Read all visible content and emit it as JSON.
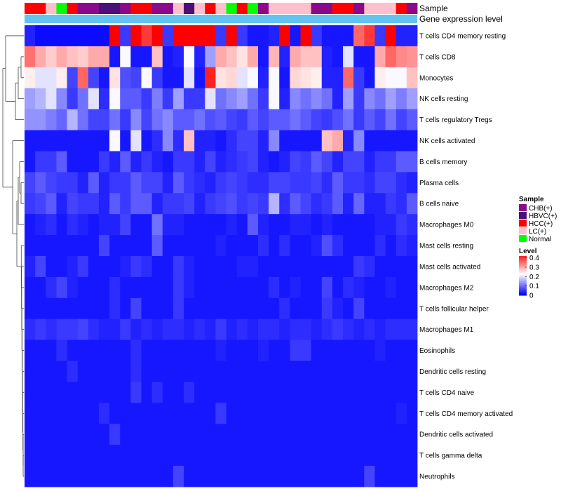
{
  "chart_data": {
    "type": "heatmap",
    "title": "",
    "annotation_tracks": [
      "Sample",
      "Gene expression level"
    ],
    "expression_track_color": "#63c3f0",
    "palette": {
      "low": "#0000ff",
      "mid": "#ffffff",
      "high": "#ff0000"
    },
    "value_range": [
      0,
      0.45
    ],
    "rows": [
      "T cells CD4 memory resting",
      "T cells CD8",
      "Monocytes",
      "NK cells resting",
      "T cells regulatory  Tregs",
      "NK cells activated",
      "B cells memory",
      "Plasma cells",
      "B cells naive",
      "Macrophages M0",
      "Mast cells resting",
      "Mast cells activated",
      "Macrophages M2",
      "T cells follicular helper",
      "Macrophages M1",
      "Eosinophils",
      "Dendritic cells resting",
      "T cells CD4 naive",
      "T cells CD4 memory activated",
      "Dendritic cells activated",
      "T cells gamma delta",
      "Neutrophils"
    ],
    "sample_groups": [
      "HCC(+)",
      "HCC(+)",
      "LC(+)",
      "Normal",
      "HCC(+)",
      "CHB(+)",
      "CHB(+)",
      "HBVC(+)",
      "HBVC(+)",
      "CHB(+)",
      "HCC(+)",
      "HCC(+)",
      "CHB(+)",
      "CHB(+)",
      "LC(+)",
      "HBVC(+)",
      "LC(+)",
      "HCC(+)",
      "LC(+)",
      "Normal",
      "HCC(+)",
      "Normal",
      "CHB(+)",
      "LC(+)",
      "LC(+)",
      "LC(+)",
      "LC(+)",
      "CHB(+)",
      "CHB(+)",
      "HCC(+)",
      "HCC(+)",
      "CHB(+)",
      "LC(+)",
      "LC(+)",
      "LC(+)",
      "HCC(+)",
      "CHB(+)"
    ],
    "group_colors": {
      "CHB(+)": "#8b0a8b",
      "HBVC(+)": "#4b0f7a",
      "HCC(+)": "#ff0000",
      "LC(+)": "#ffc0cb",
      "Normal": "#00ff00"
    },
    "legend": {
      "sample_title": "Sample",
      "sample_entries": [
        "CHB(+)",
        "HBVC(+)",
        "HCC(+)",
        "LC(+)",
        "Normal"
      ],
      "level_title": "Level",
      "level_ticks": [
        0.4,
        0.3,
        0.2,
        0.1,
        0
      ],
      "level_tick_labels": [
        "0.4",
        "0.3",
        "0.2",
        "0.1",
        "0"
      ]
    },
    "values": [
      [
        0.03,
        0.01,
        0.01,
        0.01,
        0.01,
        0.01,
        0.01,
        0.01,
        0.45,
        0.05,
        0.45,
        0.4,
        0.45,
        0.05,
        0.45,
        0.45,
        0.45,
        0.45,
        0.05,
        0.45,
        0.05,
        0.02,
        0.02,
        0.03,
        0.45,
        0.02,
        0.45,
        0.05,
        0.02,
        0.02,
        0.02,
        0.36,
        0.4,
        0.05,
        0.45,
        0.03,
        0.03
      ],
      [
        0.35,
        0.3,
        0.27,
        0.3,
        0.28,
        0.27,
        0.3,
        0.3,
        0.02,
        0.22,
        0.02,
        0.02,
        0.28,
        0.02,
        0.03,
        0.22,
        0.03,
        0.14,
        0.3,
        0.28,
        0.25,
        0.3,
        0.02,
        0.29,
        0.03,
        0.3,
        0.28,
        0.28,
        0.03,
        0.02,
        0.2,
        0.02,
        0.02,
        0.3,
        0.36,
        0.33,
        0.32
      ],
      [
        0.24,
        0.2,
        0.2,
        0.24,
        0.06,
        0.36,
        0.06,
        0.02,
        0.25,
        0.07,
        0.06,
        0.23,
        0.05,
        0.02,
        0.02,
        0.2,
        0.02,
        0.42,
        0.25,
        0.26,
        0.2,
        0.22,
        0.03,
        0.22,
        0.02,
        0.26,
        0.25,
        0.24,
        0.03,
        0.03,
        0.36,
        0.05,
        0.02,
        0.24,
        0.22,
        0.22,
        0.28
      ],
      [
        0.14,
        0.16,
        0.2,
        0.12,
        0.05,
        0.1,
        0.2,
        0.04,
        0.22,
        0.08,
        0.08,
        0.05,
        0.11,
        0.05,
        0.14,
        0.05,
        0.05,
        0.2,
        0.1,
        0.12,
        0.14,
        0.1,
        0.05,
        0.22,
        0.03,
        0.12,
        0.1,
        0.12,
        0.1,
        0.03,
        0.14,
        0.05,
        0.12,
        0.1,
        0.14,
        0.11,
        0.14
      ],
      [
        0.13,
        0.13,
        0.11,
        0.09,
        0.16,
        0.1,
        0.06,
        0.06,
        0.1,
        0.05,
        0.12,
        0.06,
        0.1,
        0.12,
        0.08,
        0.08,
        0.1,
        0.07,
        0.08,
        0.06,
        0.05,
        0.08,
        0.06,
        0.08,
        0.08,
        0.1,
        0.08,
        0.06,
        0.05,
        0.07,
        0.1,
        0.05,
        0.08,
        0.06,
        0.1,
        0.06,
        0.08
      ],
      [
        0.02,
        0.02,
        0.02,
        0.02,
        0.02,
        0.02,
        0.02,
        0.02,
        0.22,
        0.02,
        0.2,
        0.02,
        0.04,
        0.12,
        0.04,
        0.28,
        0.03,
        0.03,
        0.02,
        0.04,
        0.06,
        0.06,
        0.03,
        0.12,
        0.02,
        0.02,
        0.02,
        0.02,
        0.28,
        0.3,
        0.03,
        0.12,
        0.02,
        0.02,
        0.02,
        0.02,
        0.02
      ],
      [
        0.02,
        0.05,
        0.05,
        0.08,
        0.02,
        0.02,
        0.02,
        0.05,
        0.03,
        0.08,
        0.03,
        0.05,
        0.03,
        0.02,
        0.05,
        0.05,
        0.03,
        0.06,
        0.03,
        0.04,
        0.05,
        0.06,
        0.03,
        0.02,
        0.03,
        0.06,
        0.05,
        0.08,
        0.06,
        0.03,
        0.06,
        0.06,
        0.03,
        0.05,
        0.05,
        0.08,
        0.08
      ],
      [
        0.06,
        0.08,
        0.06,
        0.05,
        0.05,
        0.03,
        0.08,
        0.03,
        0.05,
        0.05,
        0.08,
        0.06,
        0.06,
        0.03,
        0.08,
        0.05,
        0.04,
        0.03,
        0.05,
        0.06,
        0.05,
        0.04,
        0.04,
        0.06,
        0.06,
        0.05,
        0.05,
        0.06,
        0.04,
        0.08,
        0.05,
        0.05,
        0.04,
        0.06,
        0.06,
        0.04,
        0.03
      ],
      [
        0.05,
        0.06,
        0.08,
        0.03,
        0.06,
        0.05,
        0.05,
        0.03,
        0.08,
        0.05,
        0.08,
        0.08,
        0.03,
        0.05,
        0.05,
        0.06,
        0.03,
        0.05,
        0.06,
        0.07,
        0.05,
        0.06,
        0.05,
        0.16,
        0.04,
        0.08,
        0.06,
        0.04,
        0.05,
        0.08,
        0.03,
        0.09,
        0.03,
        0.03,
        0.05,
        0.04,
        0.08
      ],
      [
        0.02,
        0.03,
        0.04,
        0.02,
        0.04,
        0.03,
        0.02,
        0.03,
        0.03,
        0.06,
        0.02,
        0.02,
        0.1,
        0.03,
        0.03,
        0.02,
        0.02,
        0.02,
        0.02,
        0.03,
        0.02,
        0.08,
        0.03,
        0.02,
        0.02,
        0.03,
        0.03,
        0.02,
        0.03,
        0.02,
        0.02,
        0.02,
        0.02,
        0.03,
        0.03,
        0.05,
        0.04
      ],
      [
        0.02,
        0.02,
        0.02,
        0.02,
        0.02,
        0.02,
        0.02,
        0.06,
        0.02,
        0.02,
        0.02,
        0.02,
        0.08,
        0.02,
        0.02,
        0.02,
        0.02,
        0.02,
        0.03,
        0.02,
        0.02,
        0.02,
        0.04,
        0.02,
        0.04,
        0.02,
        0.02,
        0.03,
        0.07,
        0.04,
        0.02,
        0.02,
        0.02,
        0.04,
        0.02,
        0.04,
        0.03
      ],
      [
        0.03,
        0.06,
        0.02,
        0.02,
        0.03,
        0.05,
        0.02,
        0.02,
        0.02,
        0.03,
        0.05,
        0.04,
        0.02,
        0.02,
        0.05,
        0.03,
        0.02,
        0.02,
        0.02,
        0.02,
        0.03,
        0.03,
        0.02,
        0.02,
        0.02,
        0.02,
        0.02,
        0.02,
        0.02,
        0.02,
        0.02,
        0.05,
        0.04,
        0.02,
        0.02,
        0.02,
        0.02
      ],
      [
        0.02,
        0.02,
        0.04,
        0.06,
        0.03,
        0.02,
        0.02,
        0.02,
        0.04,
        0.02,
        0.02,
        0.02,
        0.02,
        0.02,
        0.05,
        0.03,
        0.02,
        0.02,
        0.02,
        0.02,
        0.02,
        0.02,
        0.02,
        0.04,
        0.02,
        0.03,
        0.02,
        0.02,
        0.06,
        0.02,
        0.04,
        0.03,
        0.02,
        0.02,
        0.03,
        0.02,
        0.02
      ],
      [
        0.02,
        0.02,
        0.02,
        0.02,
        0.02,
        0.02,
        0.02,
        0.02,
        0.04,
        0.02,
        0.06,
        0.02,
        0.02,
        0.02,
        0.05,
        0.02,
        0.02,
        0.02,
        0.02,
        0.02,
        0.02,
        0.02,
        0.02,
        0.02,
        0.04,
        0.02,
        0.02,
        0.02,
        0.05,
        0.03,
        0.02,
        0.06,
        0.02,
        0.02,
        0.02,
        0.02,
        0.02
      ],
      [
        0.04,
        0.05,
        0.04,
        0.05,
        0.05,
        0.06,
        0.04,
        0.03,
        0.03,
        0.05,
        0.03,
        0.04,
        0.03,
        0.04,
        0.04,
        0.03,
        0.04,
        0.03,
        0.05,
        0.03,
        0.04,
        0.03,
        0.04,
        0.04,
        0.03,
        0.04,
        0.04,
        0.03,
        0.04,
        0.05,
        0.04,
        0.03,
        0.04,
        0.03,
        0.04,
        0.04,
        0.04
      ],
      [
        0.02,
        0.02,
        0.02,
        0.04,
        0.02,
        0.02,
        0.02,
        0.02,
        0.02,
        0.02,
        0.04,
        0.02,
        0.02,
        0.02,
        0.02,
        0.02,
        0.02,
        0.02,
        0.03,
        0.02,
        0.02,
        0.02,
        0.03,
        0.02,
        0.02,
        0.05,
        0.05,
        0.02,
        0.02,
        0.02,
        0.02,
        0.02,
        0.02,
        0.03,
        0.02,
        0.02,
        0.02
      ],
      [
        0.02,
        0.02,
        0.02,
        0.02,
        0.04,
        0.02,
        0.02,
        0.02,
        0.02,
        0.02,
        0.04,
        0.02,
        0.02,
        0.02,
        0.02,
        0.02,
        0.02,
        0.02,
        0.02,
        0.02,
        0.02,
        0.02,
        0.02,
        0.02,
        0.02,
        0.02,
        0.02,
        0.02,
        0.02,
        0.02,
        0.02,
        0.02,
        0.02,
        0.02,
        0.02,
        0.02,
        0.02
      ],
      [
        0.02,
        0.02,
        0.02,
        0.02,
        0.02,
        0.02,
        0.02,
        0.02,
        0.02,
        0.02,
        0.05,
        0.02,
        0.04,
        0.02,
        0.02,
        0.04,
        0.02,
        0.02,
        0.02,
        0.02,
        0.02,
        0.02,
        0.02,
        0.02,
        0.02,
        0.02,
        0.02,
        0.02,
        0.02,
        0.02,
        0.02,
        0.02,
        0.02,
        0.02,
        0.02,
        0.02,
        0.02
      ],
      [
        0.02,
        0.02,
        0.02,
        0.02,
        0.02,
        0.02,
        0.02,
        0.04,
        0.02,
        0.02,
        0.02,
        0.02,
        0.02,
        0.02,
        0.02,
        0.02,
        0.02,
        0.02,
        0.05,
        0.02,
        0.02,
        0.02,
        0.02,
        0.02,
        0.02,
        0.02,
        0.02,
        0.02,
        0.02,
        0.02,
        0.02,
        0.02,
        0.02,
        0.02,
        0.02,
        0.03,
        0.02
      ],
      [
        0.02,
        0.02,
        0.02,
        0.02,
        0.02,
        0.02,
        0.02,
        0.02,
        0.05,
        0.02,
        0.02,
        0.02,
        0.02,
        0.02,
        0.02,
        0.02,
        0.02,
        0.02,
        0.02,
        0.02,
        0.02,
        0.02,
        0.02,
        0.02,
        0.02,
        0.02,
        0.02,
        0.02,
        0.02,
        0.02,
        0.02,
        0.02,
        0.02,
        0.02,
        0.02,
        0.02,
        0.02
      ],
      [
        0.02,
        0.02,
        0.02,
        0.02,
        0.02,
        0.02,
        0.02,
        0.02,
        0.02,
        0.02,
        0.02,
        0.02,
        0.02,
        0.02,
        0.02,
        0.02,
        0.02,
        0.02,
        0.02,
        0.02,
        0.02,
        0.02,
        0.02,
        0.02,
        0.02,
        0.02,
        0.02,
        0.02,
        0.02,
        0.02,
        0.02,
        0.02,
        0.02,
        0.02,
        0.02,
        0.02,
        0.02
      ],
      [
        0.02,
        0.02,
        0.02,
        0.02,
        0.02,
        0.02,
        0.02,
        0.02,
        0.02,
        0.02,
        0.02,
        0.02,
        0.02,
        0.02,
        0.06,
        0.02,
        0.02,
        0.02,
        0.02,
        0.02,
        0.02,
        0.02,
        0.02,
        0.02,
        0.02,
        0.02,
        0.02,
        0.02,
        0.02,
        0.02,
        0.02,
        0.02,
        0.06,
        0.02,
        0.02,
        0.02,
        0.02
      ]
    ]
  }
}
